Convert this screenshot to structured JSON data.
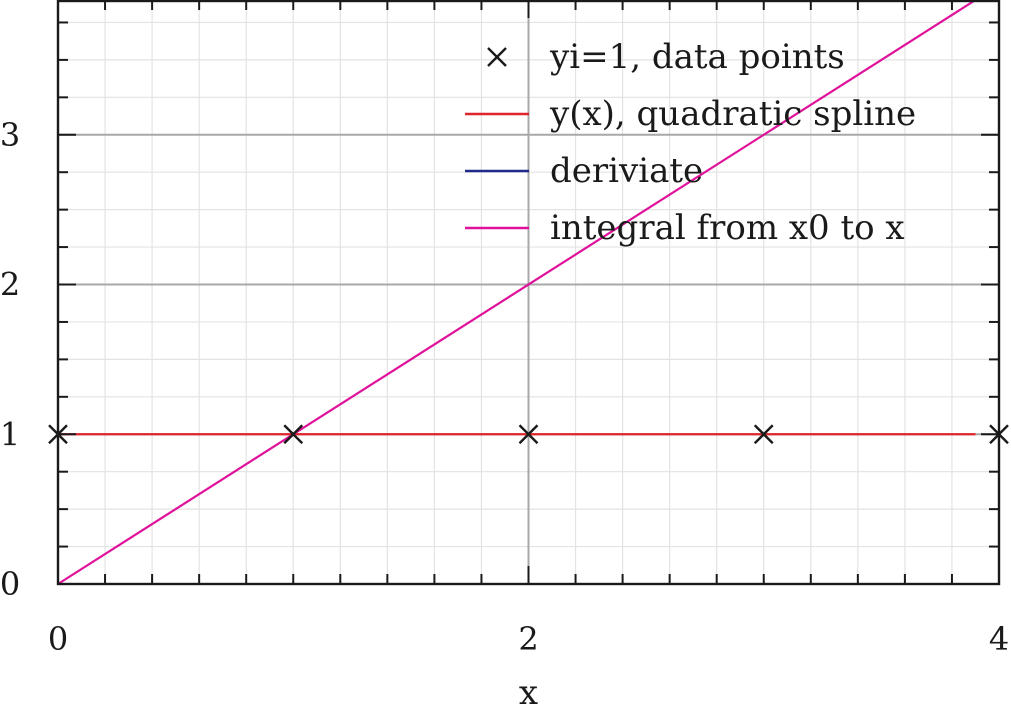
{
  "chart_data": {
    "type": "line",
    "title": "",
    "xlabel": "x",
    "ylabel": "",
    "xlim": [
      0,
      4
    ],
    "ylim": [
      0,
      3.9
    ],
    "x_major_ticks": [
      0,
      2,
      4
    ],
    "x_tick_labels": [
      "0",
      "2",
      "4"
    ],
    "y_major_ticks": [
      0,
      1,
      2,
      3
    ],
    "y_tick_labels": [
      "0",
      "1",
      "2",
      "3"
    ],
    "grid": true,
    "legend_position": "top-right",
    "series": [
      {
        "name": "yi=1, data points",
        "kind": "scatter",
        "marker": "x",
        "color": "#1a1a1a",
        "x": [
          0,
          1,
          2,
          3,
          4
        ],
        "y": [
          1,
          1,
          1,
          1,
          1
        ]
      },
      {
        "name": "y(x), quadratic spline",
        "kind": "line",
        "color": "#e0242b",
        "x": [
          0,
          3.9
        ],
        "y": [
          1,
          1
        ]
      },
      {
        "name": "deriviate",
        "kind": "line",
        "color": "#1f2a8a",
        "x": [],
        "y": []
      },
      {
        "name": "integral from x0 to x",
        "kind": "line",
        "color": "#e0119a",
        "x": [
          0,
          4
        ],
        "y": [
          0,
          4
        ]
      }
    ]
  }
}
